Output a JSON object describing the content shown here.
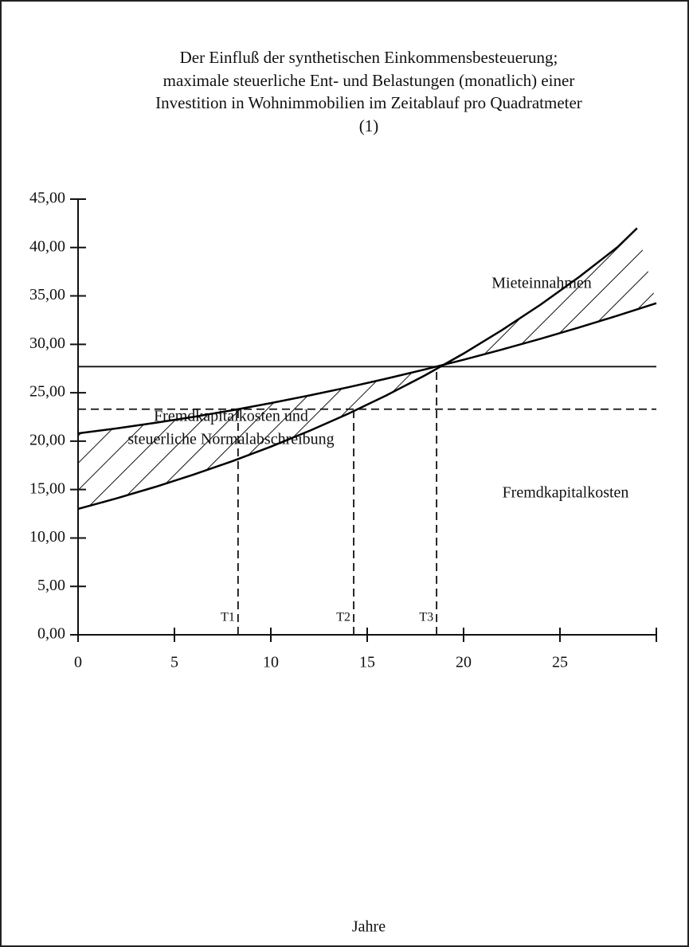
{
  "chart_data": {
    "type": "line",
    "title": [
      "Der Einfluß der synthetischen Einkommensbesteuerung;",
      "maximale steuerliche Ent- und Belastungen (monatlich) einer",
      "Investition in Wohnimmobilien im Zeitablauf pro Quadratmeter",
      "(1)"
    ],
    "x_label": "Jahre",
    "xlim": [
      0,
      30
    ],
    "xticks": [
      0,
      5,
      10,
      15,
      20,
      25
    ],
    "ylim": [
      0,
      45
    ],
    "yticks": [
      {
        "value": 0,
        "label": "0,00"
      },
      {
        "value": 5,
        "label": "5,00"
      },
      {
        "value": 10,
        "label": "10,00"
      },
      {
        "value": 15,
        "label": "15,00"
      },
      {
        "value": 20,
        "label": "20,00"
      },
      {
        "value": 25,
        "label": "25,00"
      },
      {
        "value": 30,
        "label": "30,00"
      },
      {
        "value": 35,
        "label": "35,00"
      },
      {
        "value": 40,
        "label": "40,00"
      },
      {
        "value": 45,
        "label": "45,00"
      }
    ],
    "series": [
      {
        "name": "Mieteinnahmen",
        "color": "#000000",
        "x": [
          0,
          2,
          4,
          6,
          8,
          10,
          12,
          14,
          16,
          18,
          20,
          22,
          24,
          26,
          28,
          29
        ],
        "values": [
          13.0,
          14.09,
          15.27,
          16.55,
          17.93,
          19.43,
          21.06,
          22.82,
          24.73,
          26.8,
          29.05,
          31.48,
          34.11,
          36.97,
          40.06,
          42.0
        ]
      },
      {
        "color": "#000000",
        "x": [
          0,
          2,
          4,
          6,
          8,
          10,
          12,
          14,
          16,
          18,
          20,
          22,
          24,
          26,
          28,
          30
        ],
        "values": [
          20.8,
          21.32,
          21.89,
          22.51,
          23.19,
          23.93,
          24.72,
          25.56,
          26.46,
          27.41,
          28.41,
          29.47,
          30.58,
          31.75,
          32.97,
          34.25
        ]
      }
    ],
    "hlines": [
      {
        "value": 27.7,
        "style": "solid",
        "label": [
          "Fremdkapitalkosten und",
          "steuerliche Normalabschreibung"
        ]
      },
      {
        "value": 23.3,
        "style": "dashed",
        "label": [
          "Fremdkapitalkosten"
        ]
      }
    ],
    "markers": [
      {
        "label": "T1",
        "x": 8.3,
        "y": 23.3
      },
      {
        "label": "T2",
        "x": 14.3,
        "y": 23.3
      },
      {
        "label": "T3",
        "x": 18.6,
        "y": 27.7
      }
    ]
  }
}
